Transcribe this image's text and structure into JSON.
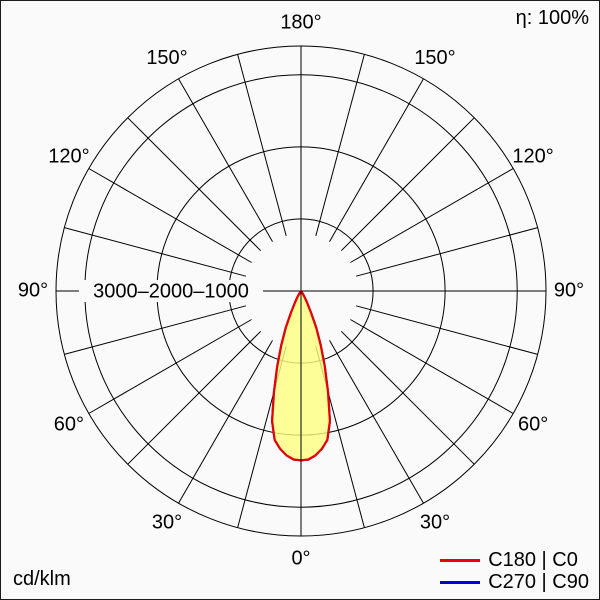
{
  "meta": {
    "eta_label": "η: 100%",
    "unit_label": "cd/klm"
  },
  "legend": [
    {
      "label": "C180 | C0",
      "color": "#e60000"
    },
    {
      "label": "C270 | C90",
      "color": "#0000d0"
    }
  ],
  "chart_data": {
    "type": "polar",
    "value_unit": "cd/klm",
    "light_output_ratio": "η: 100%",
    "grid_angle_step_deg": 15,
    "angle_labels_deg": [
      0,
      30,
      60,
      90,
      120,
      150,
      180
    ],
    "angle_label_texts": [
      "0°",
      "30°",
      "60°",
      "90°",
      "120°",
      "150°",
      "180°"
    ],
    "rings": [
      {
        "value": 1000,
        "label": "1000"
      },
      {
        "value": 2000,
        "label": "2000"
      },
      {
        "value": 3000,
        "label": "3000"
      }
    ],
    "outer_ring_value": 3400,
    "radial_axis_label": "3000–2000–1000",
    "series": [
      {
        "name": "C270 | C90",
        "color": "#0000d0",
        "symmetric": true,
        "gamma_deg": [
          0,
          2.5,
          5,
          7.5,
          10,
          12.5,
          15,
          17.5,
          20,
          22.5,
          25,
          27.5,
          30,
          32.5,
          35,
          40,
          45,
          60,
          90
        ],
        "values": [
          2350,
          2340,
          2290,
          2210,
          2100,
          1850,
          1450,
          1100,
          800,
          550,
          330,
          180,
          100,
          50,
          20,
          0,
          0,
          0,
          0
        ]
      },
      {
        "name": "C180 | C0",
        "color": "#e60000",
        "fill": "#ffff80",
        "symmetric": true,
        "gamma_deg": [
          0,
          2.5,
          5,
          7.5,
          10,
          12.5,
          15,
          17.5,
          20,
          22.5,
          25,
          27.5,
          30,
          32.5,
          35,
          40,
          45,
          60,
          90
        ],
        "values": [
          2350,
          2340,
          2290,
          2210,
          2100,
          1850,
          1450,
          1100,
          800,
          550,
          330,
          180,
          100,
          50,
          20,
          0,
          0,
          0,
          0
        ]
      }
    ]
  }
}
